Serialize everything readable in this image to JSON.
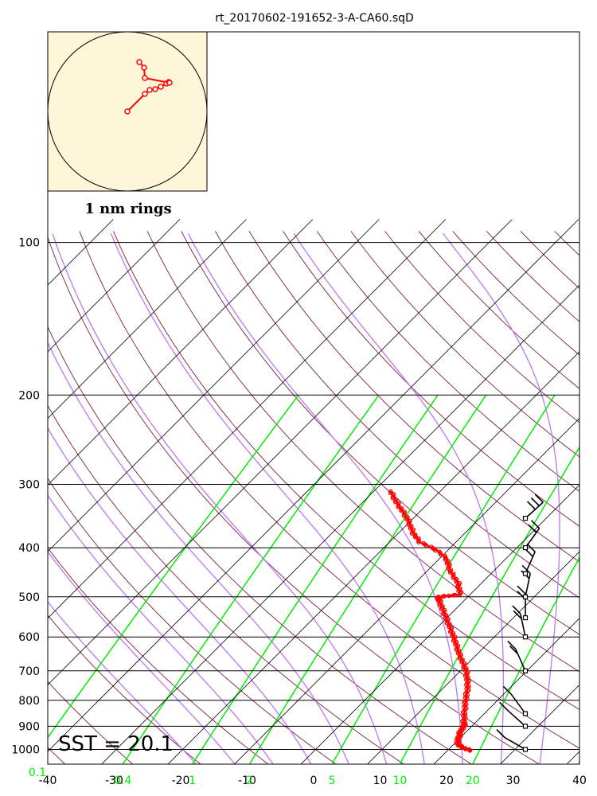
{
  "title": "rt_20170602-191652-3-A-CA60.sqD",
  "sst_label": "SST = 20.1",
  "hodograph_label": "1 nm rings",
  "colors": {
    "background": "#ffffff",
    "isobar": "#000000",
    "isotherm": "#000000",
    "dry_adiabat": "#7a1f3d",
    "moist_adiabat": "#c080f0",
    "mixing_ratio": "#00ee00",
    "temperature_trace": "#ff0000",
    "wind_barb": "#000000",
    "hodograph_bg": "#fdf6d8",
    "hodograph_trace": "#ff0000"
  },
  "chart_data": {
    "type": "line",
    "diagram": "skew-T log-P",
    "title": "rt_20170602-191652-3-A-CA60.sqD",
    "xlim": [
      -40,
      40
    ],
    "ylim_pressure": [
      1050,
      100
    ],
    "temperature_ticks": [
      "-40",
      "-30",
      "-20",
      "-10",
      "0",
      "10",
      "20",
      "30",
      "40"
    ],
    "pressure_ticks": [
      "100",
      "200",
      "300",
      "400",
      "500",
      "600",
      "700",
      "800",
      "900",
      "1000"
    ],
    "mixing_ratio_ticks": [
      "0.1",
      "0.4",
      "1",
      "2",
      "5",
      "10",
      "20"
    ],
    "series": [
      {
        "name": "",
        "units": "C",
        "points": [
          {
            "p": 1005,
            "t": 23.6
          },
          {
            "p": 995,
            "t": 22.2
          },
          {
            "p": 980,
            "t": 20.8
          },
          {
            "p": 960,
            "t": 20.0
          },
          {
            "p": 940,
            "t": 19.6
          },
          {
            "p": 920,
            "t": 19.0
          },
          {
            "p": 900,
            "t": 18.9
          },
          {
            "p": 880,
            "t": 18.1
          },
          {
            "p": 850,
            "t": 17.0
          },
          {
            "p": 800,
            "t": 15.2
          },
          {
            "p": 750,
            "t": 13.4
          },
          {
            "p": 700,
            "t": 10.9
          },
          {
            "p": 650,
            "t": 7.4
          },
          {
            "p": 600,
            "t": 3.9
          },
          {
            "p": 550,
            "t": -0.1
          },
          {
            "p": 510,
            "t": -3.6
          },
          {
            "p": 500,
            "t": -4.5
          },
          {
            "p": 495,
            "t": -1.5
          },
          {
            "p": 470,
            "t": -3.5
          },
          {
            "p": 445,
            "t": -6.5
          },
          {
            "p": 420,
            "t": -9.0
          },
          {
            "p": 405,
            "t": -11.6
          },
          {
            "p": 390,
            "t": -15.4
          },
          {
            "p": 375,
            "t": -17.7
          },
          {
            "p": 350,
            "t": -20.9
          },
          {
            "p": 325,
            "t": -25.0
          },
          {
            "p": 310,
            "t": -27.4
          }
        ]
      }
    ],
    "dry_adiabats_theta_c": [
      -40,
      -30,
      -20,
      -10,
      0,
      10,
      20,
      30,
      40,
      50,
      60,
      70,
      80,
      90,
      100,
      110,
      120,
      130,
      140,
      150,
      160,
      170,
      180,
      190,
      200,
      210,
      220,
      230,
      240,
      250,
      260,
      270,
      280
    ],
    "moist_adiabats_surface_c": [
      -20,
      -14,
      -8,
      -2,
      4,
      10,
      16,
      22,
      28,
      34,
      40
    ],
    "wind_barbs": [
      {
        "p": 1000,
        "knots": 10
      },
      {
        "p": 900,
        "knots": 10
      },
      {
        "p": 850,
        "knots": 10
      },
      {
        "p": 700,
        "knots": 15
      },
      {
        "p": 600,
        "knots": 20
      },
      {
        "p": 550,
        "knots": 15
      },
      {
        "p": 500,
        "knots": 15
      },
      {
        "p": 450,
        "knots": 15
      },
      {
        "p": 400,
        "knots": 20
      },
      {
        "p": 350,
        "knots": 30
      }
    ],
    "hodograph": {
      "ring_count": 1,
      "points": [
        [
          0.0,
          0.0
        ],
        [
          0.22,
          0.22
        ],
        [
          0.28,
          0.27
        ],
        [
          0.35,
          0.28
        ],
        [
          0.42,
          0.31
        ],
        [
          0.49,
          0.35
        ],
        [
          0.52,
          0.37
        ],
        [
          0.53,
          0.36
        ],
        [
          0.22,
          0.42
        ],
        [
          0.21,
          0.55
        ],
        [
          0.15,
          0.62
        ]
      ]
    }
  }
}
